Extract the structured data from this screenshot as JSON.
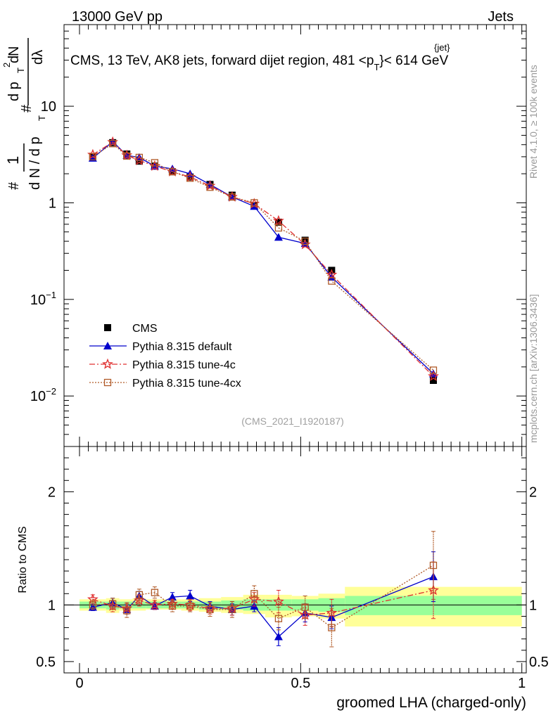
{
  "header": {
    "left": "13000 GeV pp",
    "right": "Jets"
  },
  "title": "CMS, 13 TeV, AK8 jets, forward dijet region, 481 <p",
  "title_sup": "{jet}",
  "title_sub": "T",
  "title_end": "}< 614 GeV",
  "side_right_top": "Rivet 4.1.0, ≥ 100k events",
  "side_right_bottom": "mcplots.cern.ch [arXiv:1306.3436]",
  "watermark": "(CMS_2021_I1920187)",
  "colors": {
    "cms": "#000000",
    "default": "#0000cc",
    "tune4c": "#e03030",
    "tune4cx": "#b05a28",
    "band_yellow": "#ffff99",
    "band_green": "#99ff99"
  },
  "chart_data": [
    {
      "type": "scatter",
      "panel": "main",
      "ylabel_parts": [
        "#",
        "1",
        "d N / d p",
        "T",
        "#",
        "d p",
        "T",
        "d",
        "2",
        "N",
        "dλ"
      ],
      "yscale": "log",
      "ylim": [
        0.003,
        70
      ],
      "xlim": [
        -0.035,
        1.01
      ],
      "ytick_labels": [
        {
          "value": 0.01,
          "base": "10",
          "exp": "−2"
        },
        {
          "value": 0.1,
          "base": "10",
          "exp": "−1"
        },
        {
          "value": 1,
          "base": "1",
          "exp": ""
        },
        {
          "value": 10,
          "base": "10",
          "exp": ""
        }
      ],
      "x": [
        0.03,
        0.075,
        0.107,
        0.135,
        0.17,
        0.21,
        0.25,
        0.295,
        0.345,
        0.395,
        0.45,
        0.51,
        0.57,
        0.8
      ],
      "series": [
        {
          "name": "CMS",
          "key": "cms",
          "marker": "square-filled",
          "values": [
            3.0,
            4.2,
            3.2,
            2.7,
            2.4,
            2.1,
            1.85,
            1.55,
            1.2,
            0.93,
            0.63,
            0.41,
            0.2,
            0.0145
          ]
        },
        {
          "name": "Pythia 8.315 default",
          "key": "default",
          "marker": "triangle-filled",
          "values": [
            2.9,
            4.3,
            3.1,
            2.95,
            2.4,
            2.25,
            2.0,
            1.55,
            1.15,
            0.92,
            0.44,
            0.38,
            0.17,
            0.017
          ]
        },
        {
          "name": "Pythia 8.315 tune-4c",
          "key": "tune4c",
          "marker": "star-open",
          "values": [
            3.15,
            4.25,
            3.1,
            2.75,
            2.4,
            2.1,
            1.85,
            1.5,
            1.15,
            0.98,
            0.65,
            0.37,
            0.18,
            0.016
          ]
        },
        {
          "name": "Pythia 8.315 tune-4cx",
          "key": "tune4cx",
          "marker": "square-open",
          "values": [
            3.0,
            4.1,
            3.05,
            2.95,
            2.6,
            2.1,
            1.8,
            1.45,
            1.15,
            1.0,
            0.55,
            0.4,
            0.155,
            0.0185
          ]
        }
      ],
      "legend_placement": "bottom-left"
    },
    {
      "type": "scatter",
      "panel": "ratio",
      "ylabel": "Ratio to CMS",
      "xlabel": "groomed LHA (charged-only)",
      "ylim": [
        0.4,
        2.4
      ],
      "xlim": [
        -0.035,
        1.01
      ],
      "yticks": [
        0.5,
        1,
        2
      ],
      "ytick_labels": [
        "0.5",
        "1",
        "2"
      ],
      "xticks": [
        0,
        0.5,
        1
      ],
      "xtick_labels": [
        "0",
        "0.5",
        "1"
      ],
      "reference_line": 1,
      "band_edges": [
        0.0,
        0.06,
        0.09,
        0.12,
        0.15,
        0.19,
        0.23,
        0.27,
        0.32,
        0.37,
        0.42,
        0.48,
        0.54,
        0.6,
        1.0
      ],
      "band_yellow": [
        [
          0.95,
          1.05
        ],
        [
          0.93,
          1.06
        ],
        [
          0.95,
          1.05
        ],
        [
          0.95,
          1.06
        ],
        [
          0.96,
          1.05
        ],
        [
          0.96,
          1.05
        ],
        [
          0.95,
          1.05
        ],
        [
          0.94,
          1.06
        ],
        [
          0.93,
          1.07
        ],
        [
          0.92,
          1.09
        ],
        [
          0.89,
          1.09
        ],
        [
          0.9,
          1.08
        ],
        [
          0.88,
          1.1
        ],
        [
          0.81,
          1.16
        ]
      ],
      "band_green": [
        [
          0.97,
          1.03
        ],
        [
          0.96,
          1.03
        ],
        [
          0.97,
          1.03
        ],
        [
          0.97,
          1.03
        ],
        [
          0.97,
          1.03
        ],
        [
          0.97,
          1.03
        ],
        [
          0.97,
          1.03
        ],
        [
          0.96,
          1.03
        ],
        [
          0.96,
          1.04
        ],
        [
          0.95,
          1.05
        ],
        [
          0.95,
          1.05
        ],
        [
          0.95,
          1.05
        ],
        [
          0.94,
          1.06
        ],
        [
          0.91,
          1.08
        ]
      ],
      "x": [
        0.03,
        0.075,
        0.107,
        0.135,
        0.17,
        0.21,
        0.25,
        0.295,
        0.345,
        0.395,
        0.45,
        0.51,
        0.57,
        0.8
      ],
      "series": [
        {
          "name": "Pythia 8.315 default",
          "key": "default",
          "marker": "triangle-filled",
          "values": [
            0.98,
            1.02,
            0.96,
            1.08,
            0.99,
            1.07,
            1.08,
            0.99,
            0.96,
            0.99,
            0.72,
            0.93,
            0.89,
            1.25
          ],
          "errors": [
            0.03,
            0.04,
            0.04,
            0.04,
            0.03,
            0.04,
            0.05,
            0.04,
            0.05,
            0.05,
            0.08,
            0.08,
            0.1,
            0.22
          ]
        },
        {
          "name": "Pythia 8.315 tune-4c",
          "key": "tune4c",
          "marker": "star-open",
          "values": [
            1.05,
            0.99,
            0.97,
            1.04,
            1.0,
            1.01,
            1.0,
            0.97,
            0.97,
            1.05,
            1.03,
            0.91,
            0.93,
            1.13
          ],
          "errors": [
            0.04,
            0.05,
            0.05,
            0.05,
            0.04,
            0.04,
            0.05,
            0.05,
            0.06,
            0.06,
            0.1,
            0.09,
            0.12,
            0.25
          ]
        },
        {
          "name": "Pythia 8.315 tune-4cx",
          "key": "tune4cx",
          "marker": "square-open",
          "values": [
            1.0,
            1.01,
            0.95,
            1.09,
            1.11,
            0.99,
            0.99,
            0.96,
            0.96,
            1.1,
            0.88,
            0.98,
            0.8,
            1.35
          ],
          "errors": [
            0.04,
            0.05,
            0.06,
            0.05,
            0.05,
            0.05,
            0.05,
            0.06,
            0.07,
            0.07,
            0.1,
            0.1,
            0.17,
            0.3
          ]
        }
      ]
    }
  ]
}
